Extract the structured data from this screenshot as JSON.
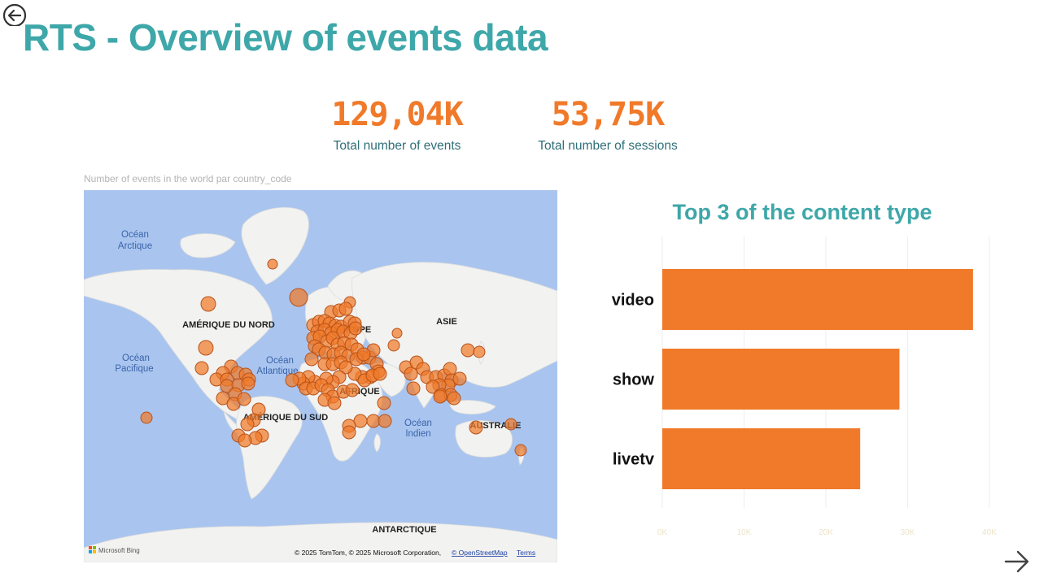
{
  "page": {
    "title": "RTS - Overview of events data"
  },
  "nav": {
    "back_icon": "circle-arrow-left-icon",
    "next_icon": "arrow-right-icon"
  },
  "kpis": [
    {
      "value": "129,04K",
      "label": "Total number of events"
    },
    {
      "value": "53,75K",
      "label": "Total number of sessions"
    }
  ],
  "colors": {
    "title": "#3ea7a9",
    "accent": "#f07a2a",
    "kpi_label": "#2f6f78",
    "ocean": "#a9c5ef",
    "land": "#f2f2f0"
  },
  "map": {
    "caption": "Number of events in the world par country_code",
    "labels": {
      "arctic": [
        "Océan",
        "Arctique"
      ],
      "pacific": [
        "Océan",
        "Pacifique"
      ],
      "atlantic": [
        "Océan",
        "Atlantique"
      ],
      "indian": [
        "Océan",
        "Indien"
      ],
      "north_america": "AMÉRIQUE DU NORD",
      "south_america": "AMÉRIQUE DU SUD",
      "europe": "EUROPE",
      "asia": "ASIE",
      "africa": "AFRIQUE",
      "australia": "AUSTRALIE",
      "antarctica": "ANTARCTIQUE"
    },
    "attribution": {
      "logo": "Microsoft Bing",
      "copyright": "© 2025 TomTom, © 2025 Microsoft Corporation, ",
      "osm_link": "© OpenStreetMap",
      "terms_link": "Terms"
    }
  },
  "chart_data": {
    "type": "bar",
    "orientation": "horizontal",
    "title": "Top 3 of the content type",
    "categories": [
      "video",
      "show",
      "livetv"
    ],
    "values": [
      38000,
      29000,
      24200
    ],
    "xlim": [
      0,
      40000
    ],
    "x_ticks": [
      0,
      10000,
      20000,
      30000,
      40000
    ],
    "x_tick_labels": [
      "0K",
      "10K",
      "20K",
      "30K",
      "40K"
    ],
    "grid": true,
    "bar_color": "#f07a2a"
  }
}
